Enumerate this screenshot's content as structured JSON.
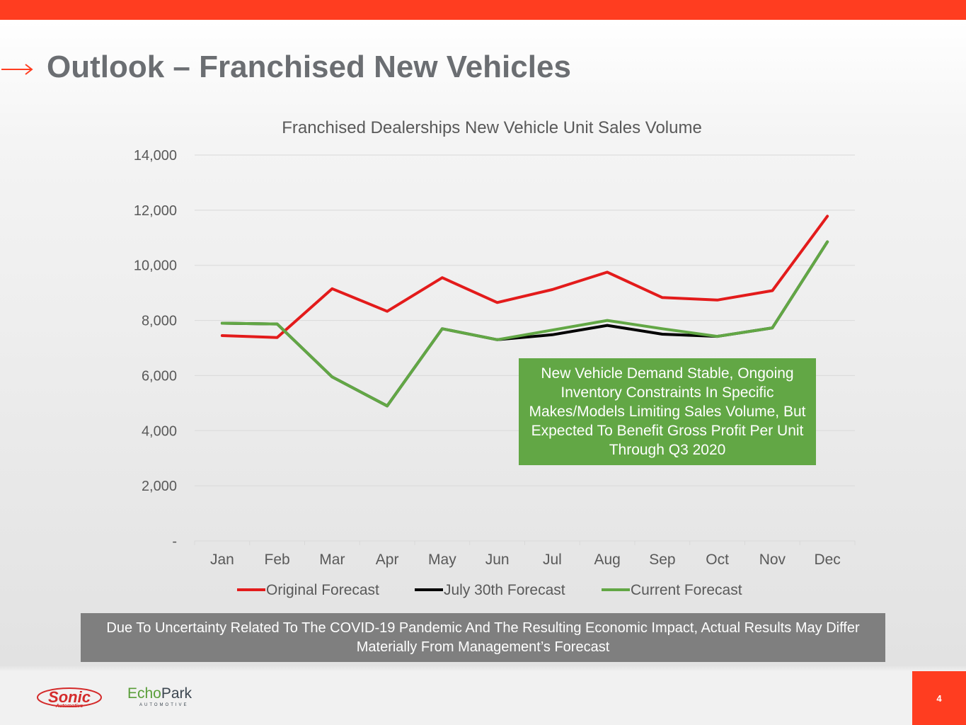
{
  "header": {
    "title": "Outlook – Franchised New Vehicles",
    "accent_color": "#ff3d20",
    "arrow_icon": "arrow-right-icon"
  },
  "chart_data": {
    "type": "line",
    "title": "Franchised Dealerships New Vehicle Unit Sales Volume",
    "xlabel": "",
    "ylabel": "",
    "categories": [
      "Jan",
      "Feb",
      "Mar",
      "Apr",
      "May",
      "Jun",
      "Jul",
      "Aug",
      "Sep",
      "Oct",
      "Nov",
      "Dec"
    ],
    "y_ticks": [
      "-",
      "2,000",
      "4,000",
      "6,000",
      "8,000",
      "10,000",
      "12,000",
      "14,000"
    ],
    "ylim": [
      0,
      14000
    ],
    "grid": true,
    "legend_position": "bottom",
    "series": [
      {
        "name": "Original Forecast",
        "color": "#e31b1b",
        "values": [
          7450,
          7380,
          9150,
          8330,
          9550,
          8650,
          9120,
          9750,
          8830,
          8740,
          9080,
          11780
        ]
      },
      {
        "name": "July 30th Forecast",
        "color": "#000000",
        "values": [
          7900,
          7870,
          5950,
          4900,
          7700,
          7300,
          7480,
          7820,
          7500,
          7420,
          7730,
          10850
        ]
      },
      {
        "name": "Current Forecast",
        "color": "#62a745",
        "values": [
          7900,
          7870,
          5950,
          4900,
          7700,
          7300,
          7650,
          8000,
          7700,
          7420,
          7730,
          10850
        ]
      }
    ]
  },
  "callout": {
    "text": "New Vehicle Demand Stable, Ongoing Inventory Constraints In Specific Makes/Models Limiting Sales Volume, But Expected To Benefit Gross Profit Per Unit Through Q3 2020"
  },
  "disclaimer": {
    "text": "Due To Uncertainty Related To The COVID-19 Pandemic And The Resulting Economic Impact, Actual Results May Differ Materially From Management’s Forecast"
  },
  "footer": {
    "logo_sonic": "Sonic",
    "logo_sonic_sub": "Automotive",
    "logo_echopark_echo": "Echo",
    "logo_echopark_park": "Park",
    "logo_echopark_sub": "AUTOMOTIVE",
    "page_number": "4"
  }
}
